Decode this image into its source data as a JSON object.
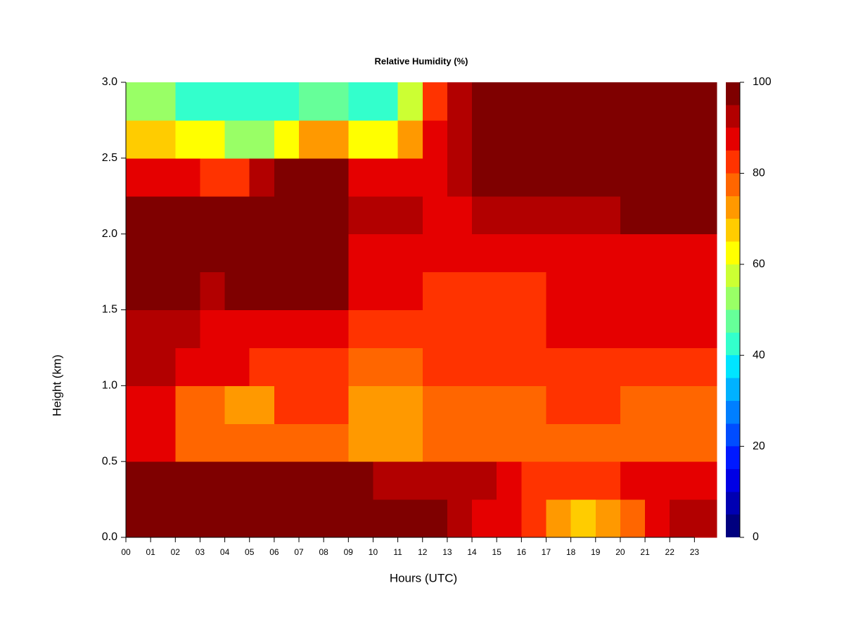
{
  "chart_data": {
    "type": "heatmap",
    "title": "Relative Humidity (%)",
    "x_label": "Hours (UTC)",
    "y_label": "Height (km)",
    "xlim": [
      0,
      23.9
    ],
    "ylim": [
      0,
      3
    ],
    "xticks": [
      {
        "value": 0,
        "label": "00"
      },
      {
        "value": 1,
        "label": "01"
      },
      {
        "value": 2,
        "label": "02"
      },
      {
        "value": 3,
        "label": "03"
      },
      {
        "value": 4,
        "label": "04"
      },
      {
        "value": 5,
        "label": "05"
      },
      {
        "value": 6,
        "label": "06"
      },
      {
        "value": 7,
        "label": "07"
      },
      {
        "value": 8,
        "label": "08"
      },
      {
        "value": 9,
        "label": "09"
      },
      {
        "value": 10,
        "label": "10"
      },
      {
        "value": 11,
        "label": "11"
      },
      {
        "value": 12,
        "label": "12"
      },
      {
        "value": 13,
        "label": "13"
      },
      {
        "value": 14,
        "label": "14"
      },
      {
        "value": 15,
        "label": "15"
      },
      {
        "value": 16,
        "label": "16"
      },
      {
        "value": 17,
        "label": "17"
      },
      {
        "value": 18,
        "label": "18"
      },
      {
        "value": 19,
        "label": "19"
      },
      {
        "value": 20,
        "label": "20"
      },
      {
        "value": 21,
        "label": "21"
      },
      {
        "value": 22,
        "label": "22"
      },
      {
        "value": 23,
        "label": "23"
      }
    ],
    "yticks": [
      {
        "value": 0,
        "label": "0.0"
      },
      0.5,
      {
        "value": 1,
        "label": "1.0"
      },
      1.5,
      {
        "value": 2,
        "label": "2.0"
      },
      2.5,
      {
        "value": 3,
        "label": "3.0"
      }
    ],
    "x_edges": [
      0,
      1,
      2,
      3,
      4,
      5,
      6,
      7,
      8,
      9,
      10,
      11,
      12,
      13,
      14,
      15,
      16,
      17,
      18,
      19,
      20,
      21,
      22,
      23,
      23.9
    ],
    "y_edges": [
      0,
      0.25,
      0.5,
      0.75,
      1,
      1.25,
      1.5,
      1.75,
      2,
      2.25,
      2.5,
      2.75,
      3
    ],
    "z": [
      [
        95,
        95,
        95,
        95,
        95,
        95,
        95,
        95,
        95,
        95,
        95,
        95,
        95,
        93,
        88,
        85,
        82,
        72,
        68,
        70,
        75,
        88,
        90,
        92
      ],
      [
        95,
        95,
        95,
        95,
        95,
        95,
        95,
        95,
        95,
        95,
        93,
        93,
        92,
        90,
        90,
        88,
        84,
        82,
        80,
        82,
        85,
        85,
        85,
        85
      ],
      [
        85,
        85,
        78,
        75,
        75,
        75,
        75,
        75,
        78,
        72,
        72,
        72,
        78,
        78,
        78,
        78,
        78,
        78,
        78,
        78,
        78,
        75,
        75,
        75
      ],
      [
        85,
        85,
        75,
        75,
        72,
        72,
        80,
        80,
        80,
        70,
        70,
        70,
        78,
        78,
        78,
        78,
        78,
        80,
        80,
        80,
        77,
        77,
        77,
        77
      ],
      [
        92,
        92,
        85,
        85,
        85,
        82,
        82,
        82,
        82,
        75,
        75,
        75,
        80,
        80,
        80,
        80,
        80,
        80,
        80,
        80,
        80,
        80,
        80,
        80
      ],
      [
        93,
        93,
        93,
        85,
        85,
        85,
        85,
        85,
        85,
        80,
        80,
        80,
        80,
        80,
        80,
        80,
        80,
        85,
        85,
        85,
        85,
        85,
        85,
        85
      ],
      [
        97,
        97,
        97,
        90,
        97,
        97,
        97,
        97,
        97,
        85,
        85,
        85,
        82,
        82,
        82,
        82,
        82,
        88,
        88,
        88,
        88,
        85,
        85,
        85
      ],
      [
        97,
        97,
        97,
        97,
        97,
        97,
        97,
        97,
        97,
        88,
        88,
        88,
        85,
        85,
        85,
        85,
        85,
        85,
        85,
        85,
        85,
        85,
        85,
        85
      ],
      [
        95,
        95,
        95,
        95,
        95,
        95,
        95,
        95,
        95,
        90,
        90,
        90,
        88,
        88,
        90,
        90,
        90,
        90,
        90,
        90,
        98,
        98,
        98,
        98
      ],
      [
        85,
        85,
        85,
        80,
        80,
        90,
        95,
        95,
        95,
        85,
        85,
        85,
        88,
        92,
        98,
        98,
        98,
        98,
        98,
        98,
        98,
        98,
        98,
        98
      ],
      [
        65,
        65,
        60,
        60,
        50,
        50,
        62,
        70,
        70,
        60,
        60,
        72,
        85,
        92,
        98,
        98,
        98,
        98,
        98,
        98,
        98,
        98,
        98,
        98
      ],
      [
        50,
        50,
        40,
        40,
        40,
        40,
        42,
        45,
        45,
        40,
        40,
        55,
        82,
        90,
        98,
        98,
        98,
        98,
        98,
        98,
        98,
        98,
        98,
        98
      ]
    ],
    "colorbar": {
      "levels": [
        0,
        5,
        10,
        15,
        20,
        25,
        30,
        35,
        40,
        45,
        50,
        55,
        60,
        65,
        70,
        75,
        80,
        85,
        90,
        95,
        100
      ],
      "colors": [
        "#00007F",
        "#0000B2",
        "#0000E5",
        "#0019FF",
        "#004CFF",
        "#007FFF",
        "#00B2FF",
        "#00E5FF",
        "#33FFCC",
        "#66FF99",
        "#99FF66",
        "#CCFF33",
        "#FFFF00",
        "#FFCC00",
        "#FF9900",
        "#FF6600",
        "#FF3300",
        "#E50000",
        "#B20000",
        "#7F0000"
      ],
      "ticks": [
        0,
        20,
        40,
        60,
        80,
        100
      ]
    }
  }
}
